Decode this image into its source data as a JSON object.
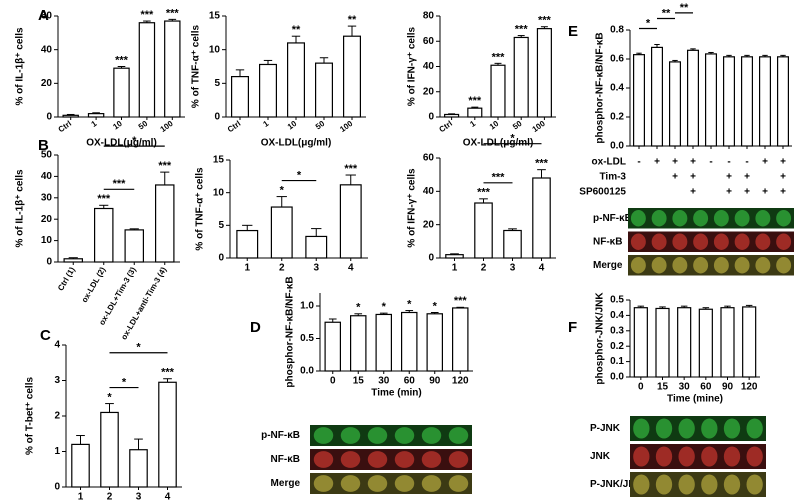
{
  "chart_data": [
    {
      "type": "bar",
      "panel": "A",
      "ylabel": "% of IL-1β⁺ cells",
      "xlabel": "OX-LDL(μg/ml)",
      "categories": [
        "Ctrl",
        "1",
        "10",
        "50",
        "100"
      ],
      "values": [
        1,
        2,
        29,
        56,
        57
      ],
      "errors": [
        0.5,
        0.5,
        1,
        1,
        1
      ],
      "significance": [
        null,
        null,
        "***",
        "***",
        "***"
      ],
      "brackets": [],
      "ylim": [
        0,
        60
      ],
      "yticks": [
        0,
        20,
        40,
        60
      ],
      "color": "#ffffff"
    },
    {
      "type": "bar",
      "ylabel": "% of TNF-α⁺ cells",
      "xlabel": "OX-LDL(μg/ml)",
      "categories": [
        "Ctrl",
        "1",
        "10",
        "50",
        "100"
      ],
      "values": [
        6,
        7.8,
        11,
        8,
        12
      ],
      "errors": [
        1,
        0.6,
        1,
        0.8,
        1.5
      ],
      "significance": [
        null,
        null,
        "**",
        null,
        "**"
      ],
      "brackets": [],
      "ylim": [
        0,
        15
      ],
      "yticks": [
        0,
        5,
        10,
        15
      ],
      "color": "#ffffff"
    },
    {
      "type": "bar",
      "ylabel": "% of IFN-γ⁺ cells",
      "xlabel": "OX-LDL(μg/ml)",
      "categories": [
        "Ctrl",
        "1",
        "10",
        "50",
        "100"
      ],
      "values": [
        2,
        7,
        41,
        63,
        70
      ],
      "errors": [
        0.5,
        0.8,
        1.5,
        1.5,
        1.5
      ],
      "significance": [
        null,
        "***",
        "***",
        "***",
        "***"
      ],
      "brackets": [],
      "ylim": [
        0,
        80
      ],
      "yticks": [
        0,
        20,
        40,
        60,
        80
      ],
      "color": "#ffffff"
    },
    {
      "type": "bar",
      "panel": "B",
      "ylabel": "% of IL-1β⁺ cells",
      "categories": [
        "Ctrl (1)",
        "ox-LDL (2)",
        "ox-LDL+Tim-3 (3)",
        "ox-LDL+anti-Tim-3 (4)"
      ],
      "values": [
        1.5,
        25,
        15,
        36
      ],
      "errors": [
        0.5,
        1.5,
        0.5,
        6
      ],
      "significance": [
        null,
        "***",
        null,
        "***"
      ],
      "brackets": [
        {
          "from": 1,
          "to": 2,
          "label": "***"
        },
        {
          "from": 1,
          "to": 3,
          "label": "*"
        }
      ],
      "ylim": [
        0,
        50
      ],
      "yticks": [
        0,
        10,
        20,
        30,
        40,
        50
      ],
      "color": "#ffffff"
    },
    {
      "type": "bar",
      "ylabel": "% of TNF-α⁺ cells",
      "categories": [
        "1",
        "2",
        "3",
        "4"
      ],
      "values": [
        4.2,
        7.8,
        3.3,
        11.2
      ],
      "errors": [
        0.8,
        1.6,
        1.2,
        1.5
      ],
      "significance": [
        null,
        "*",
        null,
        "***"
      ],
      "brackets": [
        {
          "from": 1,
          "to": 2,
          "label": "*"
        }
      ],
      "ylim": [
        0,
        15
      ],
      "yticks": [
        0,
        5,
        10,
        15
      ],
      "color": "#ffffff"
    },
    {
      "type": "bar",
      "ylabel": "% of IFN-γ⁺ cells",
      "categories": [
        "1",
        "2",
        "3",
        "4"
      ],
      "values": [
        2,
        33,
        16.5,
        48
      ],
      "errors": [
        0.5,
        2.5,
        1,
        5
      ],
      "significance": [
        null,
        "***",
        null,
        "***"
      ],
      "brackets": [
        {
          "from": 1,
          "to": 2,
          "label": "***"
        },
        {
          "from": 1,
          "to": 3,
          "label": "*"
        }
      ],
      "ylim": [
        0,
        60
      ],
      "yticks": [
        0,
        20,
        40,
        60
      ],
      "color": "#ffffff"
    },
    {
      "type": "bar",
      "panel": "C",
      "ylabel": "% of T-bet⁺ cells",
      "categories": [
        "1",
        "2",
        "3",
        "4"
      ],
      "values": [
        1.2,
        2.1,
        1.05,
        2.95
      ],
      "errors": [
        0.25,
        0.25,
        0.3,
        0.1
      ],
      "significance": [
        null,
        "*",
        null,
        "***"
      ],
      "brackets": [
        {
          "from": 1,
          "to": 2,
          "label": "*"
        },
        {
          "from": 1,
          "to": 3,
          "label": "*"
        }
      ],
      "ylim": [
        0,
        4
      ],
      "yticks": [
        0,
        1,
        2,
        3,
        4
      ],
      "color": "#ffffff"
    },
    {
      "type": "bar",
      "panel": "D",
      "ylabel": "phosphor-NF-κB/NF-κB",
      "xlabel": "Time (min)",
      "categories": [
        "0",
        "15",
        "30",
        "60",
        "90",
        "120"
      ],
      "values": [
        0.75,
        0.85,
        0.87,
        0.9,
        0.88,
        0.97
      ],
      "errors": [
        0.05,
        0.03,
        0.02,
        0.03,
        0.02,
        0.01
      ],
      "significance": [
        null,
        "*",
        "*",
        "*",
        "*",
        "***"
      ],
      "brackets": [],
      "ylim": [
        0,
        1.2
      ],
      "yticks": [
        {
          "value": 0,
          "label": "0.0"
        },
        {
          "value": 0.5,
          "label": "0.5"
        },
        {
          "value": 1,
          "label": "1.0"
        }
      ],
      "color": "#ffffff",
      "blot_labels": [
        "p-NF-κB",
        "NF-κB",
        "Merge"
      ]
    },
    {
      "type": "bar",
      "panel": "E",
      "ylabel": "phosphor-NF-κB/NF-κB",
      "categories": [
        null,
        null,
        null,
        null,
        null,
        null,
        null,
        null,
        null
      ],
      "values": [
        0.63,
        0.68,
        0.58,
        0.66,
        0.635,
        0.615,
        0.615,
        0.615,
        0.615
      ],
      "errors": [
        0.01,
        0.02,
        0.01,
        0.01,
        0.01,
        0.01,
        0.01,
        0.01,
        0.01
      ],
      "significance": [
        null,
        null,
        null,
        null,
        null,
        null,
        null,
        null,
        null
      ],
      "brackets": [
        {
          "from": 0,
          "to": 1,
          "label": "*"
        },
        {
          "from": 1,
          "to": 2,
          "label": "**"
        },
        {
          "from": 2,
          "to": 3,
          "label": "**"
        }
      ],
      "ylim": [
        0,
        0.8
      ],
      "yticks": [
        {
          "value": 0,
          "label": "0.0"
        },
        {
          "value": 0.2,
          "label": "0.2"
        },
        {
          "value": 0.4,
          "label": "0.4"
        },
        {
          "value": 0.6,
          "label": "0.6"
        },
        {
          "value": 0.8,
          "label": "0.8"
        }
      ],
      "color": "#ffffff",
      "conditions": [
        {
          "name": "ox-LDL",
          "marks": [
            "-",
            "+",
            "+",
            "+",
            "-",
            "-",
            "-",
            "+",
            "+"
          ]
        },
        {
          "name": "Tim-3",
          "marks": [
            null,
            null,
            "+",
            "+",
            null,
            "+",
            "+",
            null,
            "+"
          ]
        },
        {
          "name": "SP600125",
          "marks": [
            null,
            null,
            null,
            "+",
            null,
            "+",
            "+",
            "+",
            "+"
          ]
        }
      ],
      "blot_labels": [
        "p-NF-κB",
        "NF-κB",
        "Merge"
      ]
    },
    {
      "type": "bar",
      "panel": "F",
      "ylabel": "phosphor-JNK/JNK",
      "xlabel": "Time (mine)",
      "categories": [
        "0",
        "15",
        "30",
        "60",
        "90",
        "120"
      ],
      "values": [
        0.45,
        0.445,
        0.45,
        0.44,
        0.45,
        0.455
      ],
      "errors": [
        0.01,
        0.01,
        0.01,
        0.01,
        0.01,
        0.01
      ],
      "significance": [
        null,
        null,
        null,
        null,
        null,
        null
      ],
      "brackets": [],
      "ylim": [
        0,
        0.5
      ],
      "yticks": [
        {
          "value": 0,
          "label": "0.0"
        },
        {
          "value": 0.1,
          "label": "0.1"
        },
        {
          "value": 0.2,
          "label": "0.2"
        },
        {
          "value": 0.3,
          "label": "0.3"
        },
        {
          "value": 0.4,
          "label": "0.4"
        },
        {
          "value": 0.5,
          "label": "0.5"
        }
      ],
      "color": "#ffffff",
      "blot_labels": [
        "P-JNK",
        "JNK",
        "P-JNK/JNK"
      ]
    }
  ]
}
